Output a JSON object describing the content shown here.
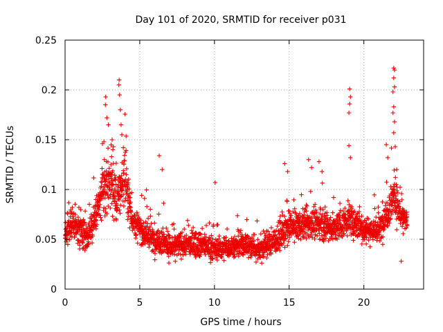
{
  "chart_data": {
    "type": "scatter",
    "title": "Day 101 of 2020, SRMTID for receiver p031",
    "xlabel": "GPS time / hours",
    "ylabel": "SRMTID / TECUs",
    "xlim": [
      0,
      24
    ],
    "ylim": [
      0,
      0.25
    ],
    "x_ticks": [
      0,
      5,
      10,
      15,
      20
    ],
    "x_tick_labels": [
      "0",
      "5",
      "10",
      "15",
      "20"
    ],
    "y_ticks": [
      0,
      0.05,
      0.1,
      0.15,
      0.2,
      0.25
    ],
    "y_tick_labels": [
      "0",
      "0.05",
      "0.1",
      "0.15",
      "0.2",
      "0.25"
    ],
    "grid": true,
    "marker": "plus",
    "series_color": "#ee0000",
    "x_range_of_data": [
      0.0,
      22.9
    ],
    "envelope": [
      {
        "x": 0.0,
        "median": 0.058,
        "spread": 0.022
      },
      {
        "x": 0.5,
        "median": 0.066,
        "spread": 0.025
      },
      {
        "x": 1.0,
        "median": 0.06,
        "spread": 0.026
      },
      {
        "x": 1.5,
        "median": 0.052,
        "spread": 0.024
      },
      {
        "x": 2.0,
        "median": 0.072,
        "spread": 0.03
      },
      {
        "x": 2.5,
        "median": 0.095,
        "spread": 0.045
      },
      {
        "x": 3.0,
        "median": 0.11,
        "spread": 0.05
      },
      {
        "x": 3.5,
        "median": 0.09,
        "spread": 0.04
      },
      {
        "x": 4.0,
        "median": 0.115,
        "spread": 0.05
      },
      {
        "x": 4.5,
        "median": 0.07,
        "spread": 0.025
      },
      {
        "x": 5.0,
        "median": 0.06,
        "spread": 0.025
      },
      {
        "x": 5.5,
        "median": 0.055,
        "spread": 0.028
      },
      {
        "x": 6.0,
        "median": 0.048,
        "spread": 0.022
      },
      {
        "x": 6.5,
        "median": 0.05,
        "spread": 0.028
      },
      {
        "x": 7.0,
        "median": 0.042,
        "spread": 0.02
      },
      {
        "x": 8.0,
        "median": 0.045,
        "spread": 0.022
      },
      {
        "x": 9.0,
        "median": 0.046,
        "spread": 0.022
      },
      {
        "x": 10.0,
        "median": 0.04,
        "spread": 0.02
      },
      {
        "x": 11.0,
        "median": 0.042,
        "spread": 0.02
      },
      {
        "x": 12.0,
        "median": 0.045,
        "spread": 0.022
      },
      {
        "x": 13.0,
        "median": 0.04,
        "spread": 0.022
      },
      {
        "x": 14.0,
        "median": 0.048,
        "spread": 0.024
      },
      {
        "x": 14.5,
        "median": 0.055,
        "spread": 0.026
      },
      {
        "x": 15.0,
        "median": 0.062,
        "spread": 0.028
      },
      {
        "x": 16.0,
        "median": 0.065,
        "spread": 0.026
      },
      {
        "x": 17.0,
        "median": 0.066,
        "spread": 0.026
      },
      {
        "x": 18.0,
        "median": 0.06,
        "spread": 0.025
      },
      {
        "x": 19.0,
        "median": 0.07,
        "spread": 0.026
      },
      {
        "x": 20.0,
        "median": 0.06,
        "spread": 0.024
      },
      {
        "x": 21.0,
        "median": 0.058,
        "spread": 0.022
      },
      {
        "x": 21.5,
        "median": 0.075,
        "spread": 0.03
      },
      {
        "x": 22.0,
        "median": 0.095,
        "spread": 0.04
      },
      {
        "x": 22.5,
        "median": 0.072,
        "spread": 0.022
      },
      {
        "x": 22.9,
        "median": 0.068,
        "spread": 0.018
      }
    ],
    "spikes": [
      {
        "x": 2.72,
        "y": 0.193
      },
      {
        "x": 2.7,
        "y": 0.185
      },
      {
        "x": 2.8,
        "y": 0.172
      },
      {
        "x": 2.9,
        "y": 0.165
      },
      {
        "x": 2.6,
        "y": 0.148
      },
      {
        "x": 2.5,
        "y": 0.146
      },
      {
        "x": 3.15,
        "y": 0.15
      },
      {
        "x": 3.2,
        "y": 0.14
      },
      {
        "x": 3.62,
        "y": 0.21
      },
      {
        "x": 3.6,
        "y": 0.205
      },
      {
        "x": 3.65,
        "y": 0.195
      },
      {
        "x": 3.7,
        "y": 0.18
      },
      {
        "x": 3.75,
        "y": 0.165
      },
      {
        "x": 3.8,
        "y": 0.155
      },
      {
        "x": 3.9,
        "y": 0.142
      },
      {
        "x": 6.3,
        "y": 0.134
      },
      {
        "x": 6.5,
        "y": 0.12
      },
      {
        "x": 10.05,
        "y": 0.107
      },
      {
        "x": 14.7,
        "y": 0.126
      },
      {
        "x": 14.9,
        "y": 0.118
      },
      {
        "x": 16.3,
        "y": 0.13
      },
      {
        "x": 16.5,
        "y": 0.122
      },
      {
        "x": 17.0,
        "y": 0.128
      },
      {
        "x": 17.2,
        "y": 0.118
      },
      {
        "x": 19.05,
        "y": 0.201
      },
      {
        "x": 19.1,
        "y": 0.193
      },
      {
        "x": 19.05,
        "y": 0.186
      },
      {
        "x": 19.0,
        "y": 0.177
      },
      {
        "x": 19.0,
        "y": 0.144
      },
      {
        "x": 19.1,
        "y": 0.132
      },
      {
        "x": 21.5,
        "y": 0.145
      },
      {
        "x": 21.6,
        "y": 0.132
      },
      {
        "x": 22.0,
        "y": 0.222
      },
      {
        "x": 22.05,
        "y": 0.22
      },
      {
        "x": 22.0,
        "y": 0.212
      },
      {
        "x": 22.05,
        "y": 0.203
      },
      {
        "x": 21.95,
        "y": 0.198
      },
      {
        "x": 22.0,
        "y": 0.183
      },
      {
        "x": 21.95,
        "y": 0.177
      },
      {
        "x": 22.05,
        "y": 0.168
      },
      {
        "x": 22.0,
        "y": 0.157
      },
      {
        "x": 22.1,
        "y": 0.143
      },
      {
        "x": 22.2,
        "y": 0.12
      },
      {
        "x": 22.5,
        "y": 0.028
      }
    ],
    "approx_point_count": 2600
  }
}
